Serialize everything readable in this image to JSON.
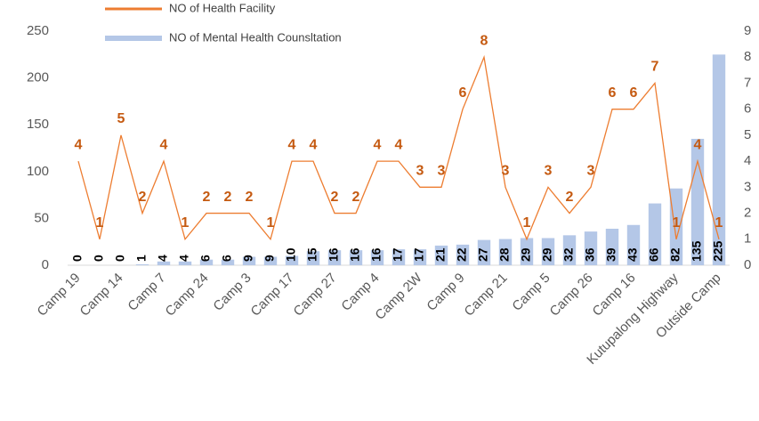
{
  "chart_data": {
    "type": "bar-line",
    "categories": [
      "Camp 19",
      null,
      "Camp 14",
      null,
      "Camp 7",
      null,
      "Camp 24",
      null,
      "Camp 3",
      null,
      "Camp 17",
      null,
      "Camp 27",
      null,
      "Camp 4",
      null,
      "Camp 2W",
      null,
      "Camp 9",
      null,
      "Camp 21",
      null,
      "Camp 5",
      null,
      "Camp 26",
      null,
      "Camp 16",
      null,
      "Kutupalong Highway",
      null,
      "Outside Camp"
    ],
    "series": [
      {
        "name": "NO of Mental Health Counsltation",
        "color": "#b4c7e7",
        "kind": "bar",
        "values": [
          0,
          0,
          0,
          1,
          4,
          4,
          6,
          6,
          9,
          9,
          10,
          15,
          16,
          16,
          16,
          17,
          17,
          21,
          22,
          27,
          28,
          29,
          29,
          32,
          36,
          39,
          43,
          66,
          82,
          135,
          225
        ]
      },
      {
        "name": "NO of Health Facility",
        "color": "#ed7d31",
        "kind": "line",
        "axis": "y2",
        "values": [
          4,
          1,
          5,
          2,
          4,
          1,
          2,
          2,
          2,
          1,
          4,
          4,
          2,
          2,
          4,
          4,
          3,
          3,
          6,
          8,
          3,
          1,
          3,
          2,
          3,
          6,
          6,
          7,
          1,
          4,
          1
        ]
      }
    ],
    "ylim": [
      0,
      250
    ],
    "yticks": [
      0,
      50,
      100,
      150,
      200,
      250
    ],
    "y2lim": [
      0,
      9
    ],
    "y2ticks": [
      0,
      1,
      2,
      3,
      4,
      5,
      6,
      7,
      8,
      9
    ]
  }
}
